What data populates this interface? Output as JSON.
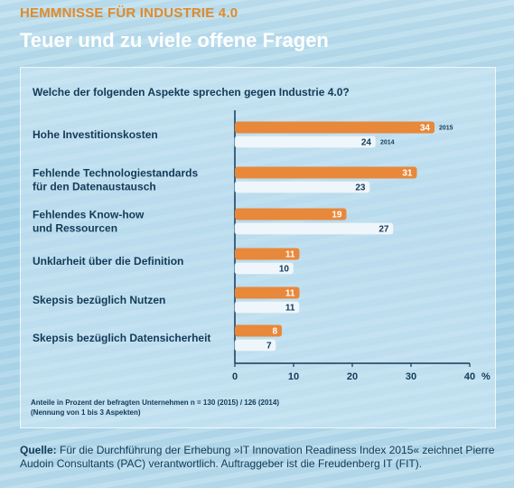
{
  "header": {
    "kicker": "HEMMNISSE FÜR INDUSTRIE 4.0",
    "title": "Teuer und zu viele offene Fragen"
  },
  "colors": {
    "series_2015": "#e8883a",
    "series_2014": "#eef6fb",
    "text": "#133a57"
  },
  "chart_data": {
    "type": "bar",
    "orientation": "horizontal",
    "title": "Welche der folgenden Aspekte sprechen gegen Industrie 4.0?",
    "categories": [
      [
        "Hohe Investitionskosten"
      ],
      [
        "Fehlende Technologiestandards",
        "für den Datenaustausch"
      ],
      [
        "Fehlendes Know-how",
        "und Ressourcen"
      ],
      [
        "Unklarheit über die Definition"
      ],
      [
        "Skepsis bezüglich Nutzen"
      ],
      [
        "Skepsis bezüglich Datensicherheit"
      ]
    ],
    "series": [
      {
        "name": "2015",
        "values": [
          34,
          31,
          19,
          11,
          11,
          8
        ]
      },
      {
        "name": "2014",
        "values": [
          24,
          23,
          27,
          10,
          11,
          7
        ]
      }
    ],
    "xlim": [
      0,
      40
    ],
    "xticks": [
      "0",
      "10",
      "20",
      "30",
      "40"
    ],
    "unit": "%",
    "legend": "labels beside first category"
  },
  "footnote": {
    "line1": "Anteile in Prozent der befragten Unternehmen n = 130 (2015) / 126 (2014)",
    "line2": "(Nennung von 1 bis 3 Aspekten)"
  },
  "source": {
    "label": "Quelle:",
    "text": "Für die Durchführung der Erhebung »IT Innovation Readiness Index 2015« zeichnet Pierre Audoin Consultants (PAC) verantwortlich. Auftraggeber ist die Freudenberg IT (FIT)."
  }
}
